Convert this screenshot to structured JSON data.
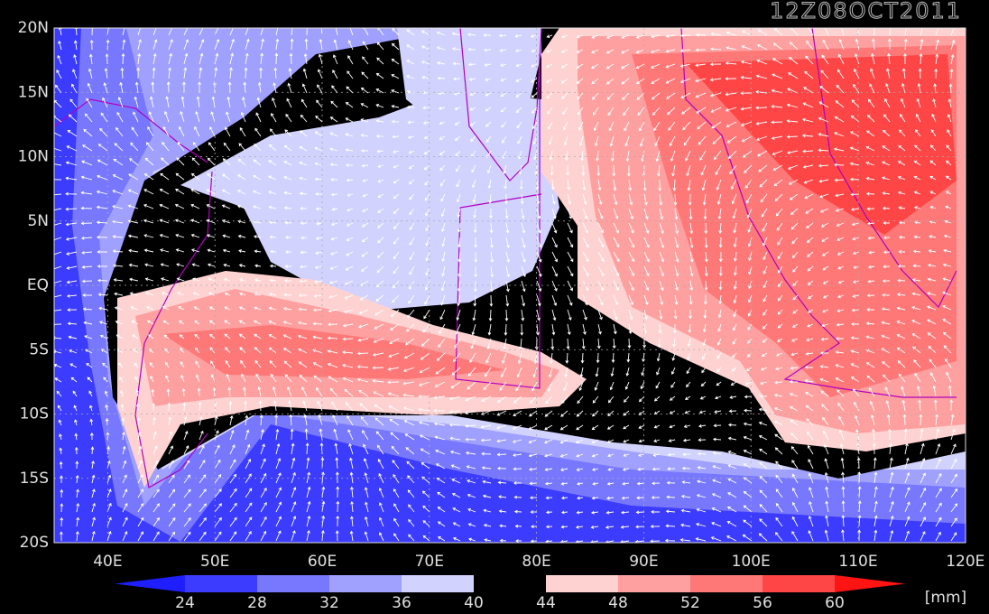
{
  "title": "12Z08OCT2011",
  "map": {
    "lat_labels": [
      "20N",
      "15N",
      "10N",
      "5N",
      "EQ",
      "5S",
      "10S",
      "15S",
      "20S"
    ],
    "lon_labels": [
      "40E",
      "50E",
      "60E",
      "70E",
      "80E",
      "90E",
      "100E",
      "110E",
      "120E"
    ]
  },
  "colorbar": {
    "levels": [
      24,
      28,
      32,
      36,
      40,
      44,
      48,
      52,
      56,
      60
    ],
    "colors": [
      "#1e1eff",
      "#3c3cff",
      "#7878ff",
      "#a0a0ff",
      "#d2d2ff",
      "#000000",
      "#ffd2d2",
      "#ffa0a0",
      "#ff7878",
      "#ff4646",
      "#ff1414"
    ],
    "unit": "[mm]"
  }
}
